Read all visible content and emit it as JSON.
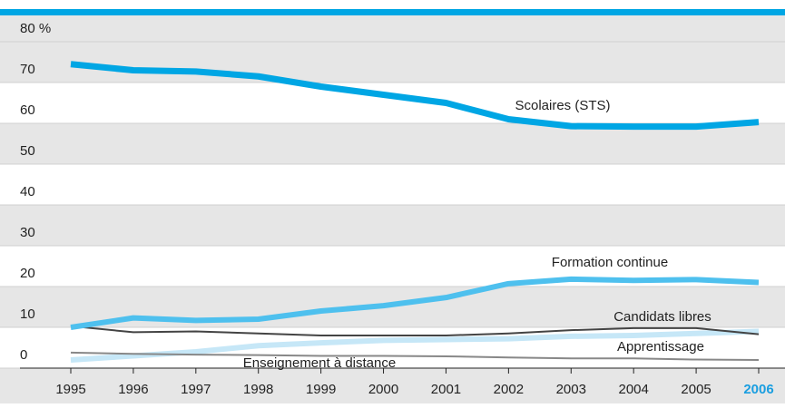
{
  "chart_data": {
    "type": "line",
    "categories": [
      "1995",
      "1996",
      "1997",
      "1998",
      "1999",
      "2000",
      "2001",
      "2002",
      "2003",
      "2004",
      "2005",
      "2006"
    ],
    "highlight": {
      "index": 11,
      "color": "#1a9ee0"
    },
    "ylim": [
      0,
      80
    ],
    "yticks": [
      0,
      10,
      20,
      30,
      40,
      50,
      60,
      70,
      {
        "value": 80,
        "label": "80 %"
      }
    ],
    "grid": true,
    "series": [
      {
        "name": "Scolaires (STS)",
        "color": "#00a6e4",
        "width": 7,
        "values": [
          74.5,
          73,
          72.7,
          71.5,
          69,
          67,
          65,
          61,
          59.3,
          59.2,
          59.2,
          60.3
        ]
      },
      {
        "name": "Formation continue",
        "color": "#4ec0ee",
        "width": 6,
        "values": [
          10,
          12.3,
          11.7,
          12,
          14,
          15.3,
          17.3,
          20.7,
          21.8,
          21.5,
          21.7,
          21
        ]
      },
      {
        "name": "Candidats libres",
        "color": "#444444",
        "width": 2,
        "values": [
          10.3,
          8.8,
          9,
          8.5,
          8,
          8,
          8,
          8.5,
          9.3,
          9.8,
          9.8,
          8.3
        ]
      },
      {
        "name": "Apprentissage",
        "color": "#c6e7f7",
        "width": 6,
        "values": [
          2,
          3,
          4,
          5.5,
          6.2,
          6.8,
          7,
          7.2,
          7.8,
          8,
          8.5,
          9
        ]
      },
      {
        "name": "Enseignement à distance",
        "color": "#888888",
        "width": 2,
        "values": [
          3.8,
          3.5,
          3.3,
          3.2,
          3,
          3,
          2.9,
          2.6,
          2.4,
          2.4,
          2.1,
          2
        ]
      }
    ]
  }
}
